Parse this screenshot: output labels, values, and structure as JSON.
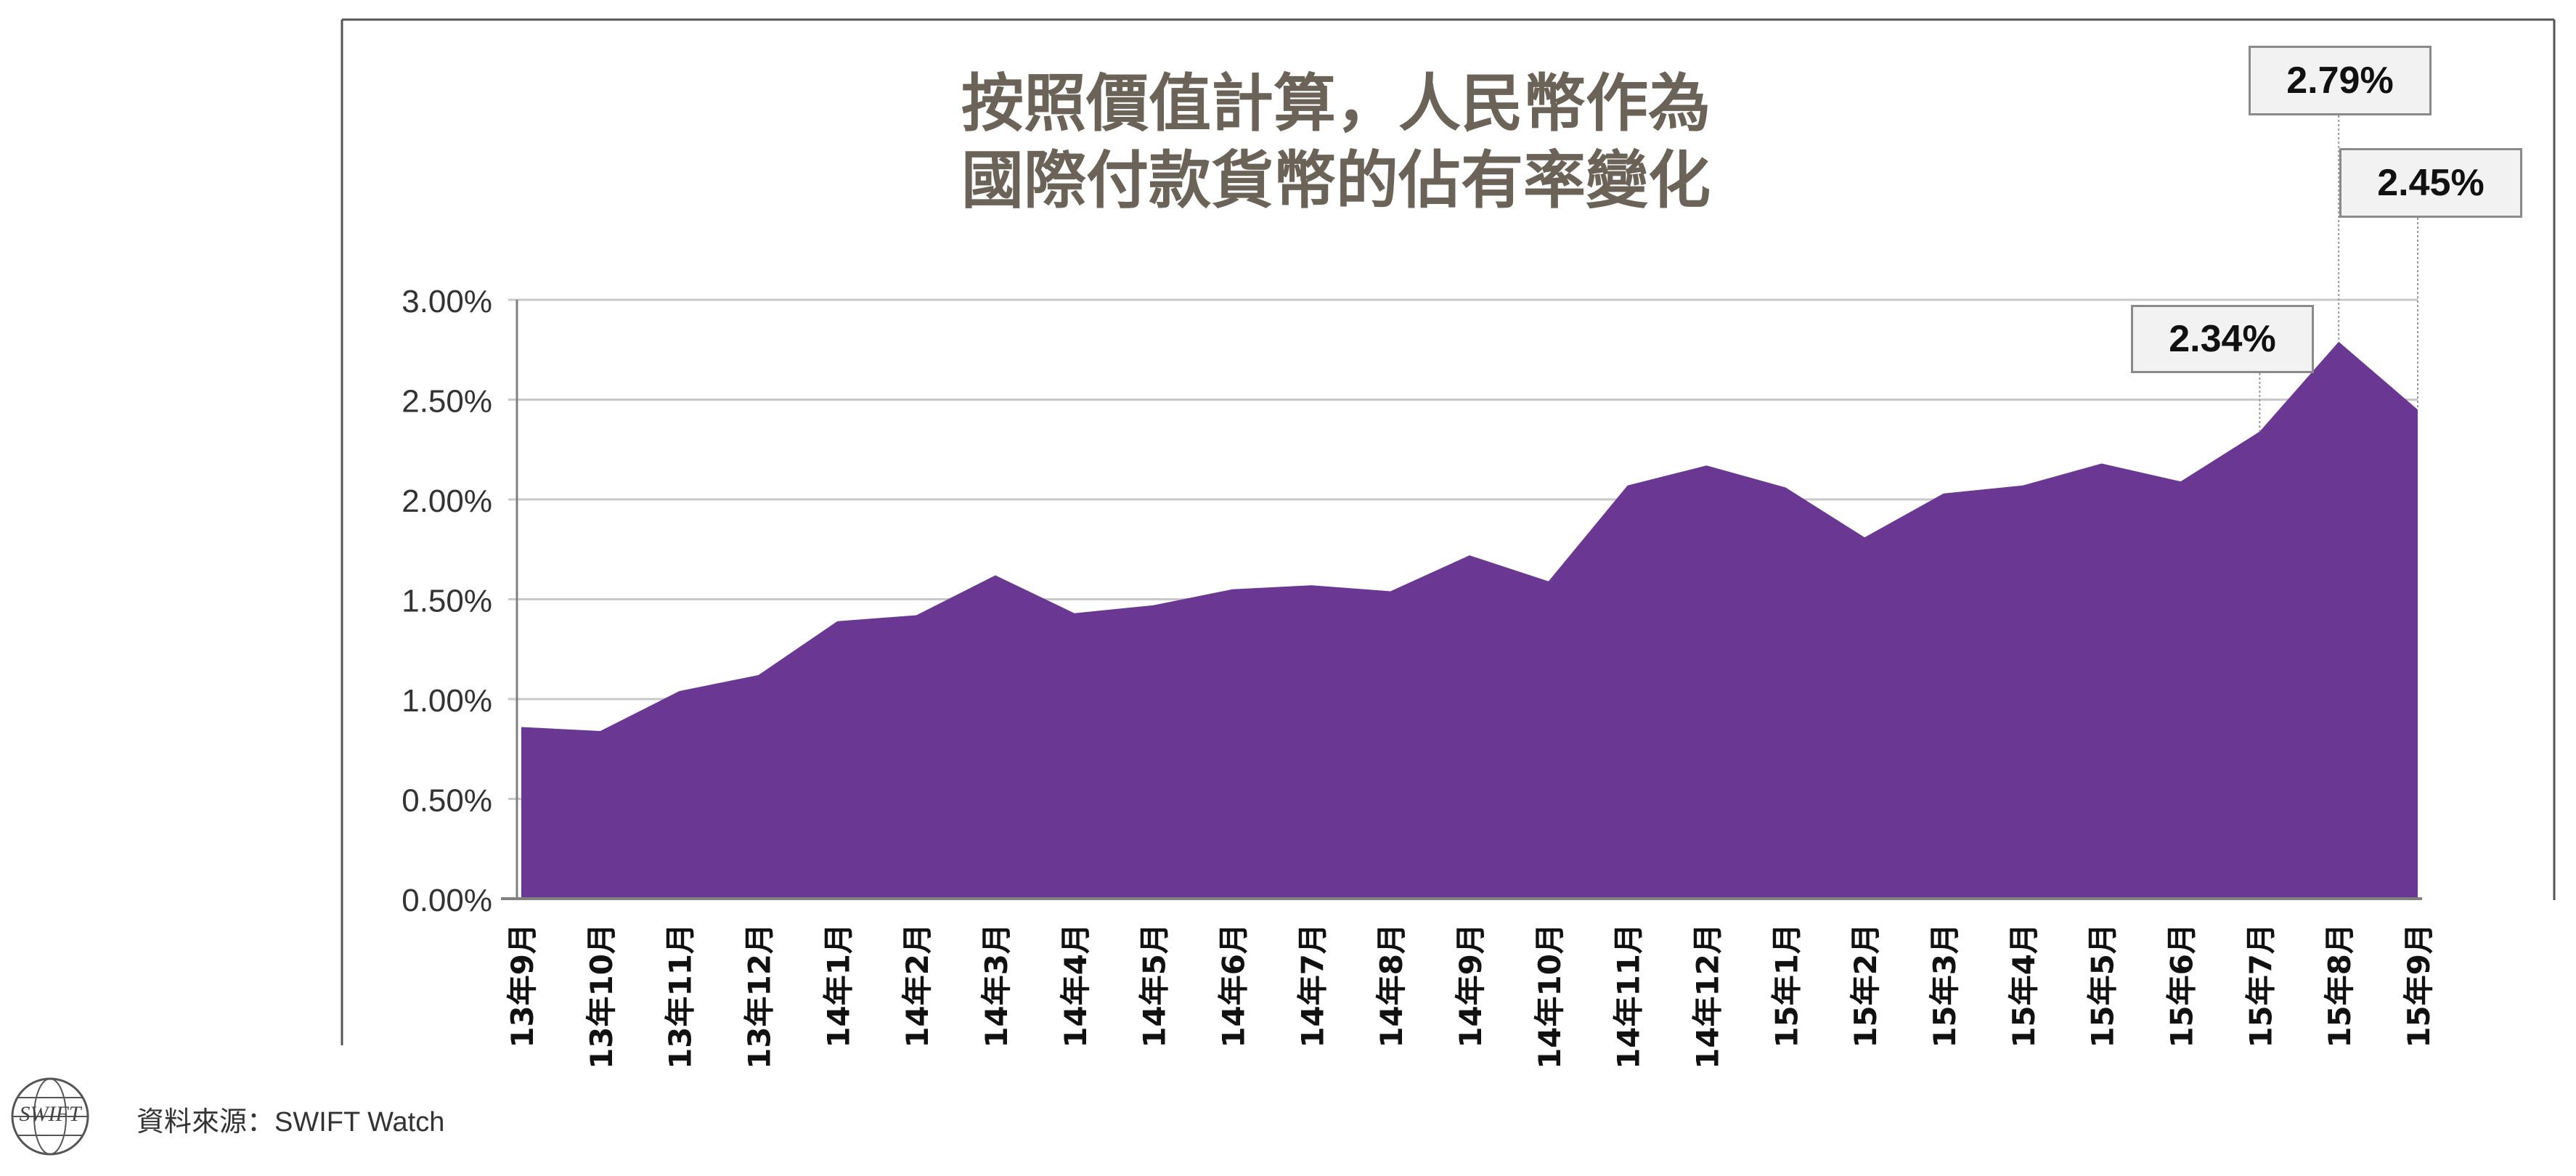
{
  "title_line1": "按照價值計算，人民幣作為",
  "title_line2": "國際付款貨幣的佔有率變化",
  "source_label": "資料來源：SWIFT Watch",
  "logo_text": "SWIFT",
  "colors": {
    "area": "#6a3793",
    "grid": "#c8c8c8",
    "axis": "#808080",
    "text": "#333333",
    "title": "#6b6358"
  },
  "chart_data": {
    "type": "area",
    "title": "按照價值計算，人民幣作為國際付款貨幣的佔有率變化",
    "xlabel": "",
    "ylabel": "",
    "ylim": [
      0,
      3.0
    ],
    "yticks": [
      "0.00%",
      "0.50%",
      "1.00%",
      "1.50%",
      "2.00%",
      "2.50%",
      "3.00%"
    ],
    "grid": true,
    "legend": "none",
    "categories": [
      "13年9月",
      "13年10月",
      "13年11月",
      "13年12月",
      "14年1月",
      "14年2月",
      "14年3月",
      "14年4月",
      "14年5月",
      "14年6月",
      "14年7月",
      "14年8月",
      "14年9月",
      "14年10月",
      "14年11月",
      "14年12月",
      "15年1月",
      "15年2月",
      "15年3月",
      "15年4月",
      "15年5月",
      "15年6月",
      "15年7月",
      "15年8月",
      "15年9月"
    ],
    "series": [
      {
        "values": [
          0.86,
          0.84,
          1.04,
          1.12,
          1.39,
          1.42,
          1.62,
          1.43,
          1.47,
          1.55,
          1.57,
          1.54,
          1.72,
          1.59,
          2.07,
          2.17,
          2.06,
          1.81,
          2.03,
          2.07,
          2.18,
          2.09,
          2.34,
          2.79,
          2.45
        ]
      }
    ],
    "annotations": [
      {
        "label": "2.34%",
        "category": "15年7月"
      },
      {
        "label": "2.79%",
        "category": "15年8月"
      },
      {
        "label": "2.45%",
        "category": "15年9月"
      }
    ]
  }
}
